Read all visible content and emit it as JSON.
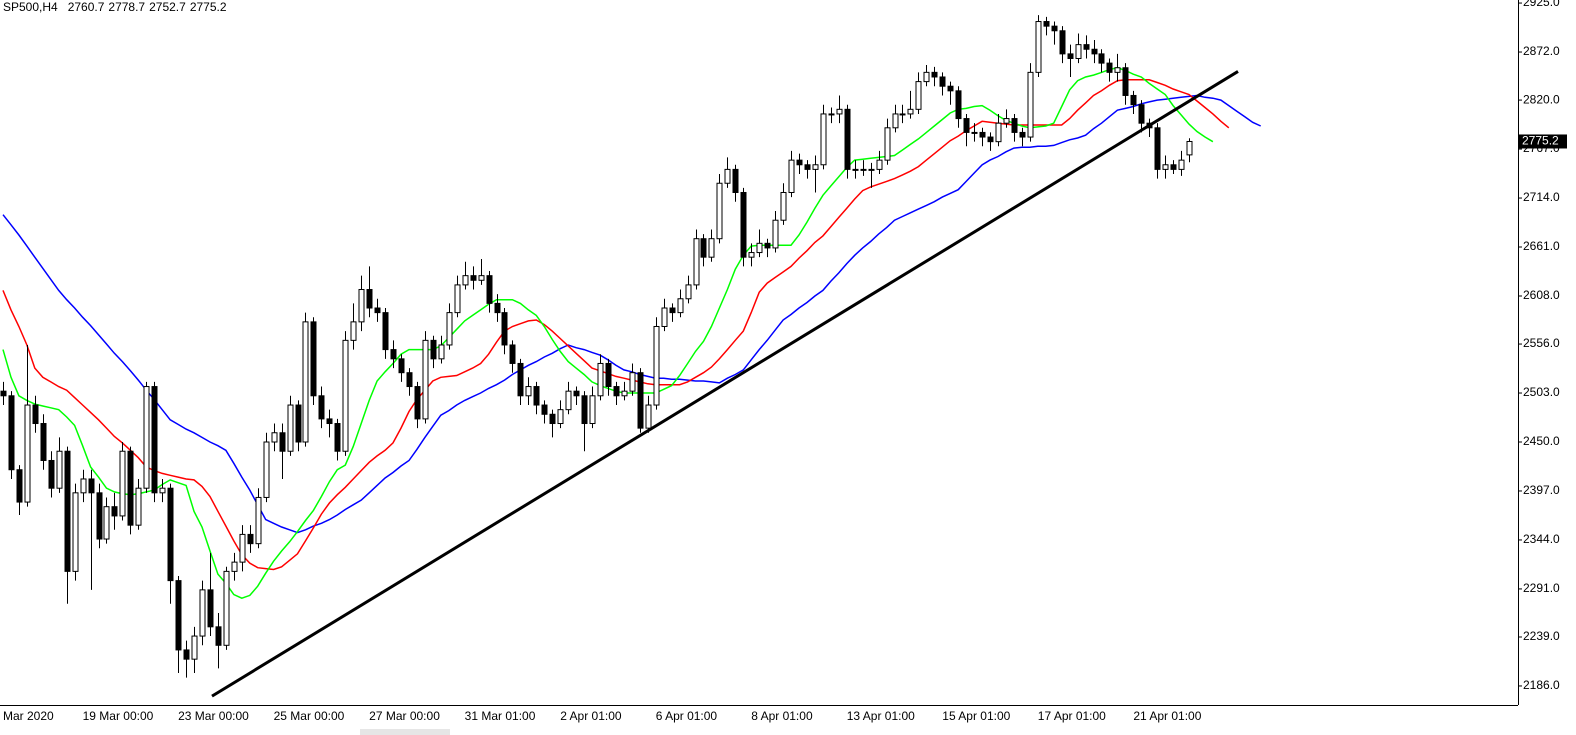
{
  "chart_data": {
    "type": "candlestick",
    "title": "SP500,H4",
    "categories": [
      "Mar 2020",
      null,
      null,
      null,
      null,
      null,
      null,
      null,
      null,
      null,
      "19 Mar 00:00",
      null,
      null,
      null,
      null,
      null,
      null,
      null,
      null,
      null,
      null,
      null,
      "23 Mar 00:00",
      null,
      null,
      null,
      null,
      null,
      null,
      null,
      null,
      null,
      null,
      null,
      "25 Mar 00:00",
      null,
      null,
      null,
      null,
      null,
      null,
      null,
      null,
      null,
      null,
      null,
      "27 Mar 00:00",
      null,
      null,
      null,
      null,
      null,
      null,
      null,
      null,
      null,
      null,
      null,
      "31 Mar 01:00",
      null,
      null,
      null,
      null,
      null,
      null,
      null,
      null,
      null,
      null,
      null,
      "2 Apr 01:00",
      null,
      null,
      null,
      null,
      null,
      null,
      null,
      null,
      null,
      null,
      null,
      "6 Apr 01:00",
      null,
      null,
      null,
      null,
      null,
      null,
      null,
      null,
      null,
      null,
      null,
      "8 Apr 01:00",
      null,
      null,
      null,
      null,
      null,
      null,
      null,
      null,
      null,
      null,
      null,
      "13 Apr 01:00",
      null,
      null,
      null,
      null,
      null,
      null,
      null,
      null,
      null,
      null,
      null,
      "15 Apr 01:00",
      null,
      null,
      null,
      null,
      null,
      null,
      null,
      null,
      null,
      null,
      null,
      "17 Apr 01:00",
      null,
      null,
      null,
      null,
      null,
      null,
      null,
      null,
      null,
      null,
      null,
      "21 Apr 01:00",
      null,
      null,
      null,
      null,
      null,
      null,
      null,
      null,
      null,
      null,
      null,
      null,
      null,
      null,
      null,
      null
    ],
    "open": [
      2505,
      2500,
      2420,
      2385,
      2490,
      2470,
      2430,
      2400,
      2440,
      2310,
      2395,
      2410,
      2395,
      2345,
      2380,
      2370,
      2440,
      2360,
      2400,
      2510,
      2395,
      2400,
      2300,
      2225,
      2215,
      2240,
      2290,
      2250,
      2230,
      2310,
      2320,
      2350,
      2340,
      2390,
      2450,
      2460,
      2440,
      2490,
      2450,
      2580,
      2500,
      2475,
      2470,
      2440,
      2560,
      2580,
      2615,
      2595,
      2590,
      2550,
      2540,
      2525,
      2510,
      2475,
      2560,
      2540,
      2555,
      2590,
      2620,
      2630,
      2625,
      2630,
      2600,
      2590,
      2555,
      2535,
      2500,
      2510,
      2490,
      2480,
      2470,
      2485,
      2505,
      2500,
      2470,
      2500,
      2535,
      2510,
      2500,
      2505,
      2525,
      2465,
      2490,
      2575,
      2595,
      2590,
      2605,
      2620,
      2670,
      2650,
      2670,
      2730,
      2745,
      2720,
      2650,
      2655,
      2665,
      2660,
      2690,
      2720,
      2755,
      2750,
      2745,
      2750,
      2805,
      2805,
      2810,
      2745,
      2745,
      2745,
      2745,
      2755,
      2790,
      2805,
      2805,
      2810,
      2840,
      2850,
      2845,
      2835,
      2830,
      2800,
      2785,
      2785,
      2780,
      2775,
      2795,
      2800,
      2785,
      2780,
      2850,
      2905,
      2900,
      2895,
      2870,
      2865,
      2880,
      2875,
      2870,
      2860,
      2850,
      2855,
      2825,
      2815,
      2795,
      2790,
      2745,
      2750,
      2745,
      2760.7,
      null,
      null,
      null,
      null,
      null,
      null,
      null,
      null,
      null
    ],
    "high": [
      2515,
      2505,
      2425,
      2555,
      2500,
      2480,
      2440,
      2455,
      2445,
      2405,
      2420,
      2420,
      2405,
      2390,
      2395,
      2450,
      2445,
      2410,
      2515,
      2515,
      2410,
      2405,
      2305,
      2235,
      2250,
      2300,
      2330,
      2265,
      2315,
      2330,
      2360,
      2360,
      2400,
      2460,
      2470,
      2470,
      2500,
      2495,
      2590,
      2585,
      2510,
      2485,
      2475,
      2570,
      2600,
      2630,
      2640,
      2605,
      2595,
      2560,
      2545,
      2530,
      2515,
      2570,
      2565,
      2565,
      2600,
      2630,
      2645,
      2640,
      2648,
      2635,
      2610,
      2595,
      2560,
      2540,
      2520,
      2515,
      2495,
      2485,
      2495,
      2515,
      2510,
      2505,
      2510,
      2545,
      2540,
      2515,
      2515,
      2535,
      2530,
      2500,
      2585,
      2605,
      2600,
      2615,
      2630,
      2680,
      2675,
      2680,
      2740,
      2758,
      2750,
      2725,
      2665,
      2680,
      2670,
      2700,
      2730,
      2765,
      2762,
      2755,
      2760,
      2815,
      2812,
      2825,
      2815,
      2755,
      2755,
      2752,
      2765,
      2800,
      2815,
      2815,
      2830,
      2850,
      2858,
      2856,
      2850,
      2840,
      2835,
      2805,
      2795,
      2790,
      2785,
      2805,
      2810,
      2805,
      2790,
      2860,
      2912,
      2910,
      2905,
      2900,
      2880,
      2892,
      2890,
      2885,
      2875,
      2865,
      2870,
      2860,
      2830,
      2820,
      2800,
      2795,
      2760,
      2755,
      2765,
      2778.7,
      null,
      null,
      null,
      null,
      null,
      null,
      null,
      null,
      null
    ],
    "low": [
      2490,
      2410,
      2371,
      2380,
      2460,
      2420,
      2390,
      2395,
      2275,
      2300,
      2385,
      2290,
      2335,
      2340,
      2355,
      2365,
      2350,
      2355,
      2395,
      2385,
      2385,
      2275,
      2200,
      2195,
      2200,
      2230,
      2240,
      2205,
      2225,
      2300,
      2310,
      2330,
      2335,
      2385,
      2440,
      2410,
      2435,
      2440,
      2445,
      2490,
      2465,
      2455,
      2430,
      2435,
      2550,
      2570,
      2585,
      2580,
      2540,
      2530,
      2515,
      2500,
      2465,
      2470,
      2530,
      2535,
      2550,
      2585,
      2615,
      2615,
      2620,
      2590,
      2580,
      2545,
      2525,
      2490,
      2490,
      2480,
      2470,
      2455,
      2465,
      2480,
      2490,
      2440,
      2465,
      2495,
      2500,
      2490,
      2495,
      2500,
      2460,
      2460,
      2485,
      2570,
      2580,
      2585,
      2600,
      2615,
      2640,
      2645,
      2665,
      2725,
      2710,
      2640,
      2640,
      2650,
      2650,
      2655,
      2685,
      2715,
      2740,
      2735,
      2720,
      2745,
      2795,
      2795,
      2735,
      2735,
      2738,
      2725,
      2740,
      2750,
      2785,
      2795,
      2800,
      2805,
      2835,
      2835,
      2825,
      2815,
      2790,
      2770,
      2775,
      2770,
      2765,
      2770,
      2790,
      2775,
      2770,
      2775,
      2845,
      2890,
      2880,
      2860,
      2845,
      2860,
      2865,
      2860,
      2850,
      2840,
      2840,
      2815,
      2805,
      2785,
      2780,
      2735,
      2735,
      2740,
      2738,
      2752.7,
      null,
      null,
      null,
      null,
      null,
      null,
      null,
      null,
      null
    ],
    "close": [
      2500,
      2420,
      2385,
      2490,
      2470,
      2430,
      2400,
      2440,
      2310,
      2395,
      2410,
      2395,
      2345,
      2380,
      2370,
      2440,
      2360,
      2400,
      2510,
      2395,
      2400,
      2300,
      2225,
      2215,
      2240,
      2290,
      2250,
      2230,
      2310,
      2320,
      2350,
      2340,
      2390,
      2450,
      2460,
      2440,
      2490,
      2450,
      2580,
      2500,
      2475,
      2470,
      2440,
      2560,
      2580,
      2615,
      2595,
      2590,
      2550,
      2540,
      2525,
      2510,
      2475,
      2560,
      2540,
      2555,
      2590,
      2620,
      2630,
      2625,
      2630,
      2600,
      2590,
      2555,
      2535,
      2500,
      2510,
      2490,
      2480,
      2470,
      2485,
      2505,
      2500,
      2470,
      2500,
      2535,
      2510,
      2500,
      2505,
      2525,
      2465,
      2490,
      2575,
      2595,
      2590,
      2605,
      2620,
      2670,
      2650,
      2670,
      2730,
      2745,
      2720,
      2650,
      2655,
      2665,
      2660,
      2690,
      2720,
      2755,
      2750,
      2745,
      2750,
      2805,
      2805,
      2810,
      2745,
      2745,
      2745,
      2745,
      2755,
      2790,
      2805,
      2805,
      2810,
      2840,
      2850,
      2845,
      2835,
      2830,
      2800,
      2785,
      2785,
      2780,
      2775,
      2795,
      2800,
      2785,
      2780,
      2850,
      2905,
      2900,
      2895,
      2870,
      2865,
      2880,
      2875,
      2870,
      2860,
      2850,
      2855,
      2825,
      2815,
      2795,
      2790,
      2745,
      2750,
      2745,
      2755,
      2775.2,
      null,
      null,
      null,
      null,
      null,
      null,
      null,
      null,
      null
    ],
    "up_color": "#ffffff",
    "down_color": "#000000",
    "candle_edge": "#000000",
    "overlays": [
      {
        "color": "#0000ff",
        "values": [
          2696,
          2685,
          2674,
          2662,
          2650,
          2638,
          2626,
          2614,
          2604,
          2595,
          2585,
          2576,
          2566,
          2556,
          2546,
          2537,
          2527,
          2517,
          2506,
          2496,
          2485,
          2474,
          2469,
          2464,
          2460,
          2455,
          2450,
          2446,
          2441,
          2427,
          2412,
          2398,
          2382,
          2366,
          2362,
          2358,
          2355,
          2352,
          2355,
          2359,
          2362,
          2366,
          2371,
          2377,
          2382,
          2387,
          2395,
          2403,
          2411,
          2417,
          2424,
          2430,
          2442,
          2455,
          2467,
          2479,
          2484,
          2490,
          2495,
          2499,
          2503,
          2508,
          2512,
          2517,
          2523,
          2528,
          2533,
          2537,
          2542,
          2546,
          2551,
          2555,
          2552,
          2550,
          2547,
          2544,
          2539,
          2533,
          2528,
          2526,
          2523,
          2521,
          2519,
          2519,
          2518,
          2518,
          2517,
          2516,
          2516,
          2515,
          2514,
          2519,
          2523,
          2528,
          2539,
          2550,
          2560,
          2571,
          2582,
          2588,
          2595,
          2601,
          2608,
          2614,
          2624,
          2633,
          2643,
          2652,
          2660,
          2667,
          2675,
          2682,
          2690,
          2694,
          2698,
          2702,
          2706,
          2710,
          2715,
          2719,
          2723,
          2732,
          2741,
          2750,
          2755,
          2759,
          2764,
          2768,
          2769,
          2769,
          2770,
          2770,
          2771,
          2774,
          2777,
          2779,
          2782,
          2789,
          2795,
          2802,
          2809,
          2811,
          2813,
          2816,
          2818,
          2820,
          2821,
          2822,
          2823,
          2824,
          2825,
          2823,
          2822,
          2820,
          2814,
          2808,
          2802,
          2796,
          2792
        ]
      },
      {
        "color": "#ff0000",
        "values": [
          2614,
          2593,
          2575,
          2555,
          2530,
          2520,
          2515,
          2510,
          2506,
          2498,
          2490,
          2482,
          2474,
          2465,
          2456,
          2449,
          2441,
          2433,
          2423,
          2419,
          2416,
          2414,
          2412,
          2410,
          2409,
          2402,
          2391,
          2375,
          2359,
          2343,
          2328,
          2319,
          2314,
          2313,
          2312,
          2315,
          2322,
          2329,
          2343,
          2357,
          2372,
          2384,
          2393,
          2401,
          2410,
          2419,
          2428,
          2435,
          2441,
          2449,
          2465,
          2483,
          2496,
          2506,
          2516,
          2520,
          2521,
          2522,
          2526,
          2530,
          2535,
          2545,
          2558,
          2570,
          2575,
          2578,
          2581,
          2582,
          2577,
          2570,
          2562,
          2554,
          2546,
          2538,
          2530,
          2527,
          2524,
          2521,
          2519,
          2517,
          2515,
          2513,
          2512,
          2512,
          2512,
          2512,
          2515,
          2520,
          2525,
          2531,
          2540,
          2550,
          2560,
          2570,
          2590,
          2612,
          2622,
          2628,
          2634,
          2640,
          2649,
          2657,
          2666,
          2673,
          2683,
          2693,
          2703,
          2713,
          2722,
          2726,
          2729,
          2732,
          2735,
          2739,
          2743,
          2748,
          2755,
          2762,
          2769,
          2776,
          2781,
          2787,
          2792,
          2797,
          2796,
          2795,
          2794,
          2793,
          2793,
          2793,
          2793,
          2793,
          2793,
          2793,
          2800,
          2809,
          2817,
          2825,
          2830,
          2836,
          2841,
          2842,
          2842,
          2842,
          2842,
          2839,
          2836,
          2832,
          2829,
          2826,
          2819,
          2812,
          2805,
          2797,
          2790,
          null,
          null,
          null,
          null
        ]
      },
      {
        "color": "#00ff00",
        "values": [
          2550,
          2520,
          2500,
          2495,
          2491,
          2489,
          2487,
          2485,
          2477,
          2468,
          2446,
          2423,
          2412,
          2400,
          2396,
          2394,
          2393,
          2394,
          2396,
          2398,
          2404,
          2409,
          2406,
          2403,
          2375,
          2358,
          2332,
          2307,
          2297,
          2285,
          2281,
          2284,
          2294,
          2308,
          2321,
          2332,
          2342,
          2353,
          2365,
          2376,
          2391,
          2407,
          2420,
          2425,
          2445,
          2470,
          2495,
          2516,
          2526,
          2535,
          2545,
          2550,
          2550,
          2550,
          2550,
          2554,
          2563,
          2572,
          2581,
          2587,
          2593,
          2599,
          2604,
          2604,
          2604,
          2600,
          2593,
          2587,
          2575,
          2561,
          2548,
          2537,
          2530,
          2523,
          2515,
          2511,
          2508,
          2505,
          2503,
          2503,
          2503,
          2503,
          2503,
          2507,
          2511,
          2522,
          2535,
          2548,
          2559,
          2575,
          2595,
          2615,
          2637,
          2652,
          2662,
          2663,
          2663,
          2663,
          2663,
          2663,
          2674,
          2688,
          2703,
          2717,
          2727,
          2737,
          2747,
          2755,
          2756,
          2757,
          2758,
          2759,
          2760,
          2766,
          2772,
          2778,
          2785,
          2792,
          2799,
          2806,
          2810,
          2811,
          2813,
          2814,
          2809,
          2803,
          2798,
          2795,
          2792,
          2790,
          2791,
          2792,
          2795,
          2813,
          2831,
          2841,
          2845,
          2847,
          2850,
          2853,
          2855,
          2852,
          2848,
          2845,
          2838,
          2832,
          2826,
          2814,
          2804,
          2794,
          2786,
          2780,
          2775,
          null,
          null,
          null,
          null,
          null,
          null
        ]
      }
    ],
    "trendline": {
      "color": "#000000",
      "values": [
        2175,
        2851
      ]
    },
    "ylim": [
      2165.4,
      2928.3
    ],
    "yticks": [
      {
        "value": 2925,
        "label": "2925.0"
      },
      {
        "value": 2872,
        "label": "2872.0"
      },
      {
        "value": 2820,
        "label": "2820.0"
      },
      {
        "value": 2767,
        "label": "2767.0"
      },
      {
        "value": 2714,
        "label": "2714.0"
      },
      {
        "value": 2661,
        "label": "2661.0"
      },
      {
        "value": 2608,
        "label": "2608.0"
      },
      {
        "value": 2556,
        "label": "2556.0"
      },
      {
        "value": 2503,
        "label": "2503.0"
      },
      {
        "value": 2450,
        "label": "2450.0"
      },
      {
        "value": 2397,
        "label": "2397.0"
      },
      {
        "value": 2344,
        "label": "2344.0"
      },
      {
        "value": 2291,
        "label": "2291.0"
      },
      {
        "value": 2239,
        "label": "2239.0"
      },
      {
        "value": 2186,
        "label": "2186.0"
      }
    ],
    "grid": false
  }
}
